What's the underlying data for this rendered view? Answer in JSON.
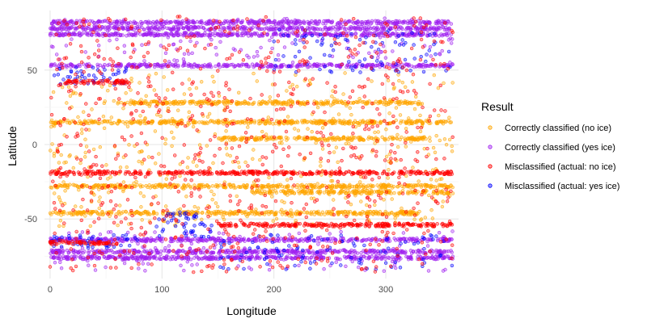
{
  "chart_data": {
    "type": "scatter",
    "title": "",
    "xlabel": "Longitude",
    "ylabel": "Latitude",
    "xlim": [
      -5,
      365
    ],
    "ylim": [
      -90,
      90
    ],
    "x_ticks": [
      0,
      100,
      200,
      300
    ],
    "y_ticks": [
      -50,
      0,
      50
    ],
    "grid": true,
    "legend_title": "Result",
    "legend_position": "right",
    "series": [
      {
        "name": "Correctly classified (no ice)",
        "color": "#FFA500",
        "bands": [
          {
            "lat_min": 15,
            "lat_max": 15,
            "x_min": 0,
            "x_max": 360,
            "kind": "line"
          },
          {
            "lat_min": 4,
            "lat_max": 4,
            "x_min": 150,
            "x_max": 340,
            "kind": "line"
          },
          {
            "lat_min": -28,
            "lat_max": -28,
            "x_min": 0,
            "x_max": 360,
            "kind": "line"
          },
          {
            "lat_min": -46,
            "lat_max": -46,
            "x_min": 0,
            "x_max": 330,
            "kind": "line"
          },
          {
            "lat_min": -32,
            "lat_max": -32,
            "x_min": 180,
            "x_max": 360,
            "kind": "line"
          },
          {
            "lat_min": 28,
            "lat_max": 28,
            "x_min": 60,
            "x_max": 330,
            "kind": "line"
          },
          {
            "lat_min": -55,
            "lat_max": 48,
            "x_min": 0,
            "x_max": 360,
            "kind": "scatter"
          }
        ]
      },
      {
        "name": "Correctly classified (yes ice)",
        "color": "#A020F0",
        "bands": [
          {
            "lat_min": 82,
            "lat_max": 82,
            "x_min": 0,
            "x_max": 360,
            "kind": "line"
          },
          {
            "lat_min": 78,
            "lat_max": 78,
            "x_min": 0,
            "x_max": 360,
            "kind": "line"
          },
          {
            "lat_min": 74,
            "lat_max": 74,
            "x_min": 0,
            "x_max": 360,
            "kind": "line"
          },
          {
            "lat_min": 53,
            "lat_max": 53,
            "x_min": 0,
            "x_max": 360,
            "kind": "line"
          },
          {
            "lat_min": -64,
            "lat_max": -64,
            "x_min": 0,
            "x_max": 360,
            "kind": "line"
          },
          {
            "lat_min": -72,
            "lat_max": -72,
            "x_min": 0,
            "x_max": 360,
            "kind": "line"
          },
          {
            "lat_min": -76,
            "lat_max": -76,
            "x_min": 0,
            "x_max": 360,
            "kind": "line"
          },
          {
            "lat_min": 55,
            "lat_max": 85,
            "x_min": 0,
            "x_max": 360,
            "kind": "scatter"
          },
          {
            "lat_min": -85,
            "lat_max": -58,
            "x_min": 0,
            "x_max": 360,
            "kind": "scatter"
          }
        ]
      },
      {
        "name": "Misclassified (actual: no ice)",
        "color": "#FF0000",
        "bands": [
          {
            "lat_min": -19,
            "lat_max": -19,
            "x_min": 0,
            "x_max": 360,
            "kind": "line"
          },
          {
            "lat_min": -54,
            "lat_max": -54,
            "x_min": 150,
            "x_max": 360,
            "kind": "line"
          },
          {
            "lat_min": -66,
            "lat_max": -66,
            "x_min": 0,
            "x_max": 60,
            "kind": "line"
          },
          {
            "lat_min": 42,
            "lat_max": 42,
            "x_min": 10,
            "x_max": 70,
            "kind": "line"
          },
          {
            "lat_min": -86,
            "lat_max": 86,
            "x_min": 0,
            "x_max": 360,
            "kind": "scatter"
          }
        ]
      },
      {
        "name": "Misclassified (actual: yes ice)",
        "color": "#0000FF",
        "bands": [
          {
            "lat_min": -62,
            "lat_max": -45,
            "x_min": 95,
            "x_max": 145,
            "kind": "scatter"
          },
          {
            "lat_min": 40,
            "lat_max": 52,
            "x_min": 0,
            "x_max": 70,
            "kind": "scatter"
          },
          {
            "lat_min": -70,
            "lat_max": -60,
            "x_min": 0,
            "x_max": 80,
            "kind": "scatter"
          },
          {
            "lat_min": -84,
            "lat_max": -60,
            "x_min": 150,
            "x_max": 360,
            "kind": "scatter"
          },
          {
            "lat_min": 48,
            "lat_max": 78,
            "x_min": 200,
            "x_max": 360,
            "kind": "scatter"
          }
        ]
      }
    ]
  }
}
